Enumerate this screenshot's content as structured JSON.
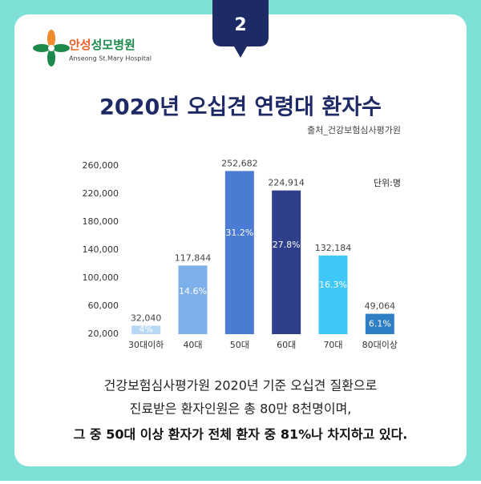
{
  "page": {
    "number": "2",
    "logo_name_a": "안성",
    "logo_name_b": "성모병원",
    "logo_sub": "Anseong St.Mary Hospital"
  },
  "chart_data": {
    "type": "bar",
    "title": "2020년 오십견 연령대 환자수",
    "source": "출처_건강보험심사평가원",
    "unit": "단위:명",
    "categories": [
      "30대이하",
      "40대",
      "50대",
      "60대",
      "70대",
      "80대이상"
    ],
    "values": [
      32040,
      117844,
      252682,
      224914,
      132184,
      49064
    ],
    "value_labels": [
      "32,040",
      "117,844",
      "252,682",
      "224,914",
      "132,184",
      "49,064"
    ],
    "share_labels": [
      "4%",
      "14.6%",
      "31.2%",
      "27.8%",
      "16.3%",
      "6.1%"
    ],
    "colors": [
      "#b7d8f4",
      "#7db0ea",
      "#4b7bd2",
      "#2f3f8b",
      "#3fc8f6",
      "#2f7fc4"
    ],
    "ylim": [
      20000,
      260000
    ],
    "yticks": [
      {
        "value": 20000,
        "label": "20,000"
      },
      {
        "value": 60000,
        "label": "60,000"
      },
      {
        "value": 100000,
        "label": "100,000"
      },
      {
        "value": 140000,
        "label": "140,000"
      },
      {
        "value": 180000,
        "label": "180,000"
      },
      {
        "value": 220000,
        "label": "220,000"
      },
      {
        "value": 260000,
        "label": "260,000"
      }
    ]
  },
  "footer": {
    "lines": [
      "건강보험심사평가원 2020년 기준 오십견 질환으로",
      "진료받은 환자인원은 총 80만 8천명이며,",
      "그 중 50대 이상 환자가 전체 환자 중 81%나 차지하고 있다."
    ]
  }
}
